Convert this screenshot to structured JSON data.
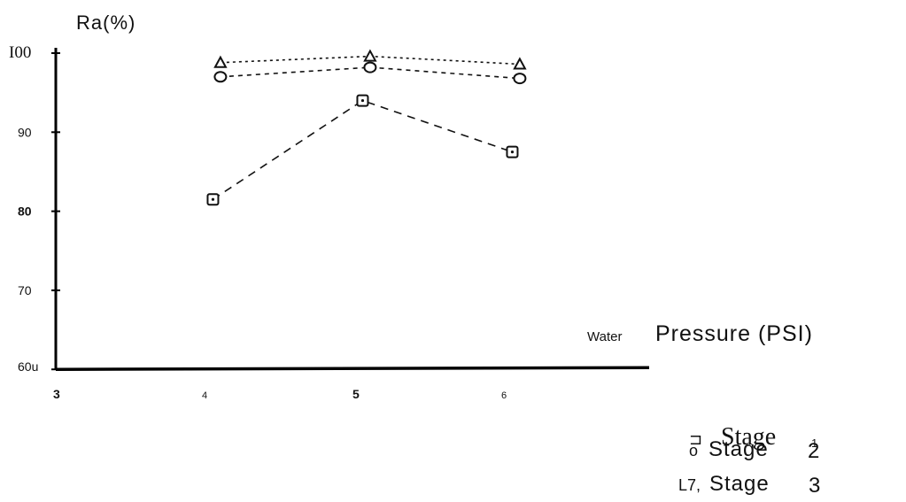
{
  "chart_data": {
    "type": "line",
    "ylabel": "Ra(%)",
    "xlabel_prefix": "Water",
    "xlabel_main": "Pressure (PSI)",
    "xlim": [
      3,
      7
    ],
    "ylim": [
      60,
      100
    ],
    "x_ticks": [
      {
        "value": 3,
        "label": "3"
      },
      {
        "value": 4,
        "label": "4"
      },
      {
        "value": 5,
        "label": "5"
      },
      {
        "value": 6,
        "label": "6"
      }
    ],
    "y_ticks": [
      {
        "value": 60,
        "label": "60u"
      },
      {
        "value": 70,
        "label": "70"
      },
      {
        "value": 80,
        "label": "80"
      },
      {
        "value": 90,
        "label": "90"
      },
      {
        "value": 100,
        "label": "I00"
      }
    ],
    "series": [
      {
        "marker": "square",
        "x": [
          4.05,
          5.05,
          6.05
        ],
        "y": [
          81.5,
          94,
          87.5
        ]
      },
      {
        "marker": "circle",
        "x": [
          4.1,
          5.1,
          6.1
        ],
        "y": [
          97,
          98.2,
          96.8
        ]
      },
      {
        "marker": "triangle",
        "x": [
          4.1,
          5.1,
          6.1
        ],
        "y": [
          98.8,
          99.6,
          98.6
        ]
      }
    ],
    "legend": [
      {
        "symbol": "⊐",
        "text": "Stage",
        "num": "1"
      },
      {
        "symbol": "o",
        "text": "Stage",
        "num": "2"
      },
      {
        "symbol": "L7,",
        "text": "Stage",
        "num": "3"
      }
    ],
    "grid": false
  }
}
